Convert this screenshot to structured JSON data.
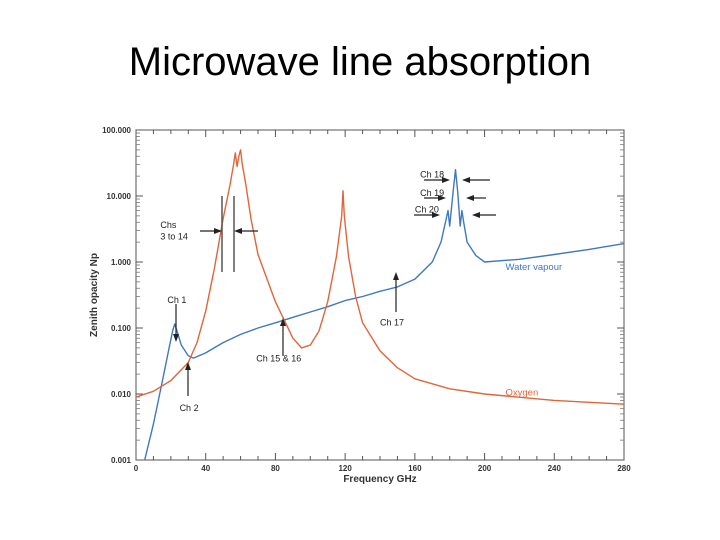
{
  "slide": {
    "title": "Microwave line absorption"
  },
  "chart_data": {
    "type": "line",
    "xlabel": "Frequency GHz",
    "ylabel": "Zenith opacity Np",
    "xlim": [
      0,
      280
    ],
    "ylim": [
      0.001,
      100
    ],
    "yscale": "log",
    "x_ticks": [
      0,
      40,
      80,
      120,
      160,
      200,
      240,
      280
    ],
    "y_ticks": [
      {
        "value": 0.001,
        "label": "0.001"
      },
      {
        "value": 0.01,
        "label": "0.010"
      },
      {
        "value": 0.1,
        "label": "0.100"
      },
      {
        "value": 1,
        "label": "1.000"
      },
      {
        "value": 10,
        "label": "10.000"
      },
      {
        "value": 100,
        "label": "100.000"
      }
    ],
    "grid": false,
    "series": [
      {
        "name": "Water vapour",
        "color": "#3f78c0",
        "label_at": [
          212,
          0.75
        ],
        "points": [
          [
            5,
            0.001
          ],
          [
            10,
            0.0035
          ],
          [
            15,
            0.015
          ],
          [
            19,
            0.05
          ],
          [
            21,
            0.09
          ],
          [
            22.2,
            0.115
          ],
          [
            23.5,
            0.09
          ],
          [
            26,
            0.055
          ],
          [
            30,
            0.038
          ],
          [
            33,
            0.035
          ],
          [
            40,
            0.042
          ],
          [
            50,
            0.06
          ],
          [
            60,
            0.08
          ],
          [
            70,
            0.1
          ],
          [
            80,
            0.12
          ],
          [
            90,
            0.145
          ],
          [
            100,
            0.175
          ],
          [
            110,
            0.21
          ],
          [
            120,
            0.26
          ],
          [
            130,
            0.3
          ],
          [
            140,
            0.36
          ],
          [
            150,
            0.42
          ],
          [
            160,
            0.55
          ],
          [
            170,
            1.0
          ],
          [
            175,
            2.0
          ],
          [
            178,
            4.5
          ],
          [
            179,
            6.0
          ],
          [
            180,
            3.5
          ],
          [
            182,
            12.0
          ],
          [
            183.3,
            25.0
          ],
          [
            184.5,
            12.0
          ],
          [
            186,
            3.5
          ],
          [
            187,
            6.0
          ],
          [
            188,
            4.0
          ],
          [
            190,
            2.0
          ],
          [
            195,
            1.25
          ],
          [
            200,
            1.0
          ],
          [
            220,
            1.1
          ],
          [
            240,
            1.3
          ],
          [
            260,
            1.55
          ],
          [
            280,
            1.9
          ]
        ]
      },
      {
        "name": "Oxygen",
        "color": "#e0663a",
        "label_at": [
          212,
          0.0095
        ],
        "points": [
          [
            0,
            0.009
          ],
          [
            10,
            0.011
          ],
          [
            20,
            0.016
          ],
          [
            30,
            0.03
          ],
          [
            35,
            0.06
          ],
          [
            40,
            0.18
          ],
          [
            45,
            0.8
          ],
          [
            50,
            4.5
          ],
          [
            54,
            15
          ],
          [
            56,
            30
          ],
          [
            57,
            45
          ],
          [
            58,
            28
          ],
          [
            59,
            40
          ],
          [
            60,
            50
          ],
          [
            61,
            30
          ],
          [
            63,
            15
          ],
          [
            66,
            4.5
          ],
          [
            70,
            1.3
          ],
          [
            80,
            0.25
          ],
          [
            90,
            0.07
          ],
          [
            95,
            0.05
          ],
          [
            100,
            0.055
          ],
          [
            105,
            0.09
          ],
          [
            110,
            0.25
          ],
          [
            115,
            1.2
          ],
          [
            118,
            5
          ],
          [
            118.75,
            12
          ],
          [
            119.5,
            5
          ],
          [
            122,
            1.2
          ],
          [
            126,
            0.3
          ],
          [
            130,
            0.12
          ],
          [
            140,
            0.045
          ],
          [
            150,
            0.025
          ],
          [
            160,
            0.017
          ],
          [
            180,
            0.012
          ],
          [
            200,
            0.01
          ],
          [
            240,
            0.008
          ],
          [
            280,
            0.007
          ]
        ]
      }
    ],
    "annotations": [
      {
        "text": "Chs",
        "at": [
          14,
          3.3
        ]
      },
      {
        "text": "3 to 14",
        "at": [
          14,
          2.2
        ]
      },
      {
        "text": "Ch 1",
        "at": [
          18,
          0.24
        ]
      },
      {
        "text": "Ch 2",
        "at": [
          25,
          0.0055
        ]
      },
      {
        "text": "Ch 15 & 16",
        "at": [
          69,
          0.031
        ]
      },
      {
        "text": "Ch 17",
        "at": [
          140,
          0.11
        ]
      },
      {
        "text": "Ch 18",
        "at": [
          163,
          19
        ]
      },
      {
        "text": "Ch 19",
        "at": [
          163,
          10
        ]
      },
      {
        "text": "Ch 20",
        "at": [
          160,
          5.6
        ]
      }
    ]
  }
}
